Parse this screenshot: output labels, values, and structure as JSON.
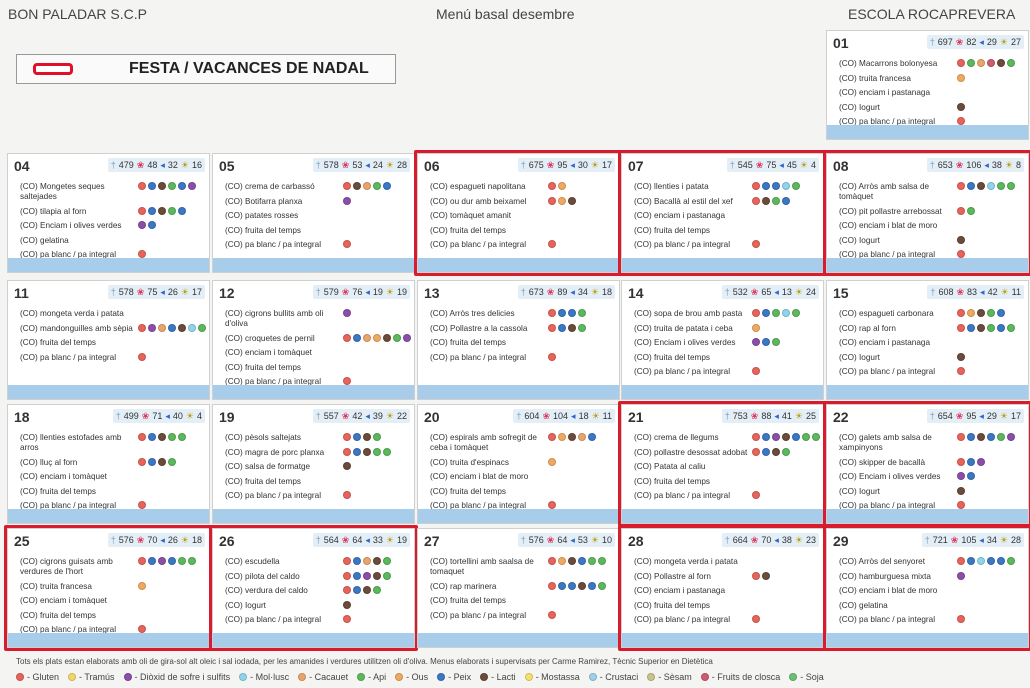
{
  "header": {
    "company": "BON PALADAR S.C.P",
    "title": "Menú basal desembre",
    "school": "ESCOLA ROCAPREVERA"
  },
  "festa": "FESTA / VACANCES DE NADAL",
  "footer": "Tots els plats estan elaborats amb oli de gira-sol alt oleic i sal iodada, per les amanides i verdures utilitzen oli d'oliva. Menus elaborats i supervisats per Carme Ramirez, Tècnic Superior en Dietètica",
  "allergens": [
    {
      "name": "Gluten",
      "color": "#e8635a"
    },
    {
      "name": "Tramús",
      "color": "#f2d66a"
    },
    {
      "name": "Diòxid de sofre i sulfits",
      "color": "#8a4fa8"
    },
    {
      "name": "Mol·lusc",
      "color": "#8fd4ea"
    },
    {
      "name": "Cacauet",
      "color": "#e9a46b"
    },
    {
      "name": "Api",
      "color": "#5cb85c"
    },
    {
      "name": "Ous",
      "color": "#f0a860"
    },
    {
      "name": "Peix",
      "color": "#3b77c4"
    },
    {
      "name": "Lacti",
      "color": "#6b4b3a"
    },
    {
      "name": "Mostassa",
      "color": "#f5e06a"
    },
    {
      "name": "Crustaci",
      "color": "#9ccfe8"
    },
    {
      "name": "Sèsam",
      "color": "#c9c28a"
    },
    {
      "name": "Fruits de closca",
      "color": "#d05a6e"
    },
    {
      "name": "Soja",
      "color": "#6cc070"
    }
  ],
  "days": [
    {
      "day": "01",
      "nut": [
        "697",
        "82",
        "29",
        "27"
      ],
      "items": [
        {
          "text": "(CO) Macarrons bolonyesa",
          "d": [
            "#e8635a",
            "#5cb85c",
            "#e9a46b",
            "#d05a6e",
            "#6b4b3a",
            "#5cb85c"
          ]
        },
        {
          "text": "(CO) truita francesa",
          "d": [
            "#f0a860"
          ]
        },
        {
          "text": "(CO) enciam i pastanaga",
          "d": []
        },
        {
          "text": "(CO) Iogurt",
          "d": [
            "#6b4b3a"
          ]
        },
        {
          "text": "(CO) pa blanc / pa integral",
          "d": [
            "#e8635a"
          ]
        }
      ]
    },
    {
      "day": "04",
      "nut": [
        "479",
        "48",
        "32",
        "16"
      ],
      "items": [
        {
          "text": "(CO) Mongetes seques saltejades",
          "d": [
            "#e8635a",
            "#3b77c4",
            "#6b4b3a",
            "#5cb85c",
            "#3b77c4",
            "#8a4fa8"
          ]
        },
        {
          "text": "(CO) tilapia al forn",
          "d": [
            "#e8635a",
            "#3b77c4",
            "#6b4b3a",
            "#5cb85c",
            "#3b77c4"
          ]
        },
        {
          "text": "(CO) Enciam i olives verdes",
          "d": [
            "#8a4fa8",
            "#3b77c4"
          ]
        },
        {
          "text": "(CO) gelatina",
          "d": []
        },
        {
          "text": "(CO) pa blanc / pa integral",
          "d": [
            "#e8635a"
          ]
        }
      ]
    },
    {
      "day": "05",
      "nut": [
        "578",
        "53",
        "24",
        "28"
      ],
      "items": [
        {
          "text": "(CO) crema de carbassó",
          "d": [
            "#e8635a",
            "#6b4b3a",
            "#e9a46b",
            "#5cb85c",
            "#3b77c4"
          ]
        },
        {
          "text": "(CO) Botifarra planxa",
          "d": [
            "#8a4fa8"
          ]
        },
        {
          "text": "(CO) patates rosses",
          "d": []
        },
        {
          "text": "(CO) fruita del temps",
          "d": []
        },
        {
          "text": "(CO) pa blanc / pa integral",
          "d": [
            "#e8635a"
          ]
        }
      ]
    },
    {
      "day": "06",
      "nut": [
        "675",
        "95",
        "30",
        "17"
      ],
      "items": [
        {
          "text": "(CO) espagueti napolitana",
          "d": [
            "#e8635a",
            "#f0a860"
          ]
        },
        {
          "text": "(CO) ou dur amb beixamel",
          "d": [
            "#e8635a",
            "#f0a860",
            "#6b4b3a"
          ]
        },
        {
          "text": "(CO) tomàquet amanit",
          "d": []
        },
        {
          "text": "(CO) fruita del temps",
          "d": []
        },
        {
          "text": "(CO) pa blanc / pa integral",
          "d": [
            "#e8635a"
          ]
        }
      ]
    },
    {
      "day": "07",
      "nut": [
        "545",
        "75",
        "45",
        "4"
      ],
      "items": [
        {
          "text": "(CO) llenties i patata",
          "d": [
            "#e8635a",
            "#3b77c4",
            "#3b77c4",
            "#8fd4ea",
            "#5cb85c"
          ]
        },
        {
          "text": "(CO) Bacallà al estil del xef",
          "d": [
            "#e8635a",
            "#6b4b3a",
            "#5cb85c",
            "#3b77c4"
          ]
        },
        {
          "text": "(CO) enciam i pastanaga",
          "d": []
        },
        {
          "text": "(CO) fruita del temps",
          "d": []
        },
        {
          "text": "(CO) pa blanc / pa integral",
          "d": [
            "#e8635a"
          ]
        }
      ]
    },
    {
      "day": "08",
      "nut": [
        "653",
        "106",
        "38",
        "8"
      ],
      "items": [
        {
          "text": "(CO) Arròs amb salsa de tomàquet",
          "d": [
            "#e8635a",
            "#3b77c4",
            "#6b4b3a",
            "#8fd4ea",
            "#5cb85c",
            "#5cb85c"
          ]
        },
        {
          "text": "(CO) pit pollastre arrebossat",
          "d": [
            "#e8635a",
            "#5cb85c"
          ]
        },
        {
          "text": "(CO) enciam i blat de moro",
          "d": []
        },
        {
          "text": "(CO) Iogurt",
          "d": [
            "#6b4b3a"
          ]
        },
        {
          "text": "(CO) pa blanc / pa integral",
          "d": [
            "#e8635a"
          ]
        }
      ]
    },
    {
      "day": "11",
      "nut": [
        "578",
        "75",
        "26",
        "17"
      ],
      "items": [
        {
          "text": "(CO) mongeta verda i patata",
          "d": []
        },
        {
          "text": "(CO) mandonguilles amb sèpia",
          "d": [
            "#e8635a",
            "#8a4fa8",
            "#e9a46b",
            "#3b77c4",
            "#6b4b3a",
            "#8fd4ea",
            "#5cb85c"
          ]
        },
        {
          "text": "(CO) fruita del temps",
          "d": []
        },
        {
          "text": "(CO) pa blanc / pa integral",
          "d": [
            "#e8635a"
          ]
        }
      ]
    },
    {
      "day": "12",
      "nut": [
        "579",
        "76",
        "19",
        "19"
      ],
      "items": [
        {
          "text": "(CO) cigrons bullits amb oli d'oliva",
          "d": [
            "#8a4fa8"
          ]
        },
        {
          "text": "(CO) croquetes de pernil",
          "d": [
            "#e8635a",
            "#3b77c4",
            "#e9a46b",
            "#f0a860",
            "#6b4b3a",
            "#5cb85c",
            "#8a4fa8"
          ]
        },
        {
          "text": "(CO) enciam i tomàquet",
          "d": []
        },
        {
          "text": "(CO) fruita del temps",
          "d": []
        },
        {
          "text": "(CO) pa blanc / pa integral",
          "d": [
            "#e8635a"
          ]
        }
      ]
    },
    {
      "day": "13",
      "nut": [
        "673",
        "89",
        "34",
        "18"
      ],
      "items": [
        {
          "text": "(CO) Arròs tres delicies",
          "d": [
            "#e8635a",
            "#3b77c4",
            "#3b77c4",
            "#5cb85c"
          ]
        },
        {
          "text": "(CO) Pollastre a la cassola",
          "d": [
            "#e8635a",
            "#3b77c4",
            "#6b4b3a",
            "#5cb85c"
          ]
        },
        {
          "text": "(CO) fruita del temps",
          "d": []
        },
        {
          "text": "(CO) pa blanc / pa integral",
          "d": [
            "#e8635a"
          ]
        }
      ]
    },
    {
      "day": "14",
      "nut": [
        "532",
        "65",
        "13",
        "24"
      ],
      "items": [
        {
          "text": "(CO) sopa de brou amb pasta",
          "d": [
            "#e8635a",
            "#3b77c4",
            "#5cb85c",
            "#8fd4ea",
            "#5cb85c"
          ]
        },
        {
          "text": "(CO) truita de patata i ceba",
          "d": [
            "#f0a860"
          ]
        },
        {
          "text": "(CO) Enciam i olives verdes",
          "d": [
            "#8a4fa8",
            "#3b77c4",
            "#5cb85c"
          ]
        },
        {
          "text": "(CO) fruita del temps",
          "d": []
        },
        {
          "text": "(CO) pa blanc / pa integral",
          "d": [
            "#e8635a"
          ]
        }
      ]
    },
    {
      "day": "15",
      "nut": [
        "608",
        "83",
        "42",
        "11"
      ],
      "items": [
        {
          "text": "(CO) espagueti carbonara",
          "d": [
            "#e8635a",
            "#f0a860",
            "#6b4b3a",
            "#5cb85c",
            "#3b77c4"
          ]
        },
        {
          "text": "(CO) rap al forn",
          "d": [
            "#e8635a",
            "#3b77c4",
            "#6b4b3a",
            "#5cb85c",
            "#3b77c4",
            "#5cb85c"
          ]
        },
        {
          "text": "(CO) enciam i pastanaga",
          "d": []
        },
        {
          "text": "(CO) Iogurt",
          "d": [
            "#6b4b3a"
          ]
        },
        {
          "text": "(CO) pa blanc / pa integral",
          "d": [
            "#e8635a"
          ]
        }
      ]
    },
    {
      "day": "18",
      "nut": [
        "499",
        "71",
        "40",
        "4"
      ],
      "items": [
        {
          "text": "(CO) llenties estofades amb arros",
          "d": [
            "#e8635a",
            "#3b77c4",
            "#6b4b3a",
            "#5cb85c",
            "#5cb85c"
          ]
        },
        {
          "text": "(CO) lluç al forn",
          "d": [
            "#e8635a",
            "#3b77c4",
            "#6b4b3a",
            "#5cb85c"
          ]
        },
        {
          "text": "(CO) enciam i tomàquet",
          "d": []
        },
        {
          "text": "(CO) fruita del temps",
          "d": []
        },
        {
          "text": "(CO) pa blanc / pa integral",
          "d": [
            "#e8635a"
          ]
        }
      ]
    },
    {
      "day": "19",
      "nut": [
        "557",
        "42",
        "39",
        "22"
      ],
      "items": [
        {
          "text": "(CO) pèsols saltejats",
          "d": [
            "#e8635a",
            "#3b77c4",
            "#6b4b3a",
            "#5cb85c"
          ]
        },
        {
          "text": "(CO) magra de porc planxa",
          "d": [
            "#e8635a",
            "#3b77c4",
            "#6b4b3a",
            "#5cb85c",
            "#5cb85c"
          ]
        },
        {
          "text": "(CO) salsa de formatge",
          "d": [
            "#6b4b3a"
          ]
        },
        {
          "text": "(CO) fruita del temps",
          "d": []
        },
        {
          "text": "(CO) pa blanc / pa integral",
          "d": [
            "#e8635a"
          ]
        }
      ]
    },
    {
      "day": "20",
      "nut": [
        "604",
        "104",
        "18",
        "11"
      ],
      "items": [
        {
          "text": "(CO) espirals amb sofregit de ceba i tomàquet",
          "d": [
            "#e8635a",
            "#f0a860",
            "#6b4b3a",
            "#e9a46b",
            "#3b77c4"
          ]
        },
        {
          "text": "(CO) truita d'espinacs",
          "d": [
            "#f0a860"
          ]
        },
        {
          "text": "(CO) enciam i blat de moro",
          "d": []
        },
        {
          "text": "(CO) fruita del temps",
          "d": []
        },
        {
          "text": "(CO) pa blanc / pa integral",
          "d": [
            "#e8635a"
          ]
        }
      ]
    },
    {
      "day": "21",
      "nut": [
        "753",
        "88",
        "41",
        "25"
      ],
      "items": [
        {
          "text": "(CO) crema de llegums",
          "d": [
            "#e8635a",
            "#3b77c4",
            "#8a4fa8",
            "#6b4b3a",
            "#3b77c4",
            "#5cb85c",
            "#5cb85c"
          ]
        },
        {
          "text": "(CO) pollastre desossat adobat",
          "d": [
            "#e8635a",
            "#3b77c4",
            "#6b4b3a",
            "#5cb85c"
          ]
        },
        {
          "text": "(CO) Patata al caliu",
          "d": []
        },
        {
          "text": "(CO) fruita del temps",
          "d": []
        },
        {
          "text": "(CO) pa blanc / pa integral",
          "d": [
            "#e8635a"
          ]
        }
      ]
    },
    {
      "day": "22",
      "nut": [
        "654",
        "95",
        "29",
        "17"
      ],
      "items": [
        {
          "text": "(CO) galets amb salsa de xampinyons",
          "d": [
            "#e8635a",
            "#3b77c4",
            "#6b4b3a",
            "#3b77c4",
            "#5cb85c",
            "#8a4fa8"
          ]
        },
        {
          "text": "(CO) skipper de bacallà",
          "d": [
            "#e8635a",
            "#3b77c4",
            "#8a4fa8"
          ]
        },
        {
          "text": "(CO) Enciam i olives verdes",
          "d": [
            "#8a4fa8",
            "#3b77c4"
          ]
        },
        {
          "text": "(CO) Iogurt",
          "d": [
            "#6b4b3a"
          ]
        },
        {
          "text": "(CO) pa blanc / pa integral",
          "d": [
            "#e8635a"
          ]
        }
      ]
    },
    {
      "day": "25",
      "nut": [
        "576",
        "70",
        "26",
        "18"
      ],
      "items": [
        {
          "text": "(CO) cigrons guisats amb verdures de l'hort",
          "d": [
            "#e8635a",
            "#3b77c4",
            "#8a4fa8",
            "#3b77c4",
            "#5cb85c",
            "#5cb85c"
          ]
        },
        {
          "text": "(CO) truita francesa",
          "d": [
            "#f0a860"
          ]
        },
        {
          "text": "(CO) enciam i tomàquet",
          "d": []
        },
        {
          "text": "(CO) fruita del temps",
          "d": []
        },
        {
          "text": "(CO) pa blanc / pa integral",
          "d": [
            "#e8635a"
          ]
        }
      ]
    },
    {
      "day": "26",
      "nut": [
        "564",
        "64",
        "33",
        "19"
      ],
      "items": [
        {
          "text": "(CO) escudella",
          "d": [
            "#e8635a",
            "#3b77c4",
            "#e9a46b",
            "#6b4b3a",
            "#5cb85c"
          ]
        },
        {
          "text": "(CO) pilota del caldo",
          "d": [
            "#e8635a",
            "#3b77c4",
            "#8a4fa8",
            "#6b4b3a",
            "#5cb85c"
          ]
        },
        {
          "text": "(CO) verdura del caldo",
          "d": [
            "#e8635a",
            "#3b77c4",
            "#6b4b3a",
            "#5cb85c"
          ]
        },
        {
          "text": "(CO) Iogurt",
          "d": [
            "#6b4b3a"
          ]
        },
        {
          "text": "(CO) pa blanc / pa integral",
          "d": [
            "#e8635a"
          ]
        }
      ]
    },
    {
      "day": "27",
      "nut": [
        "576",
        "64",
        "53",
        "10"
      ],
      "items": [
        {
          "text": "(CO) tortellini amb saalsa de tomaquet",
          "d": [
            "#e8635a",
            "#f0a860",
            "#6b4b3a",
            "#3b77c4",
            "#5cb85c",
            "#5cb85c"
          ]
        },
        {
          "text": "(CO) rap marinera",
          "d": [
            "#e8635a",
            "#3b77c4",
            "#3b77c4",
            "#6b4b3a",
            "#3b77c4",
            "#5cb85c"
          ]
        },
        {
          "text": "(CO) fruita del temps",
          "d": []
        },
        {
          "text": "(CO) pa blanc / pa integral",
          "d": [
            "#e8635a"
          ]
        }
      ]
    },
    {
      "day": "28",
      "nut": [
        "664",
        "70",
        "38",
        "23"
      ],
      "items": [
        {
          "text": "(CO) mongeta verda i patata",
          "d": []
        },
        {
          "text": "(CO) Pollastre al forn",
          "d": [
            "#e8635a",
            "#6b4b3a"
          ]
        },
        {
          "text": "(CO) enciam i pastanaga",
          "d": []
        },
        {
          "text": "(CO) fruita del temps",
          "d": []
        },
        {
          "text": "(CO) pa blanc / pa integral",
          "d": [
            "#e8635a"
          ]
        }
      ]
    },
    {
      "day": "29",
      "nut": [
        "721",
        "105",
        "34",
        "28"
      ],
      "items": [
        {
          "text": "(CO) Arròs del senyoret",
          "d": [
            "#e8635a",
            "#3b77c4",
            "#8fd4ea",
            "#3b77c4",
            "#3b77c4",
            "#5cb85c"
          ]
        },
        {
          "text": "(CO) hamburguesa mixta",
          "d": [
            "#8a4fa8"
          ]
        },
        {
          "text": "(CO) enciam i blat de moro",
          "d": []
        },
        {
          "text": "(CO) gelatina",
          "d": []
        },
        {
          "text": "(CO) pa blanc / pa integral",
          "d": [
            "#e8635a"
          ]
        }
      ]
    }
  ]
}
